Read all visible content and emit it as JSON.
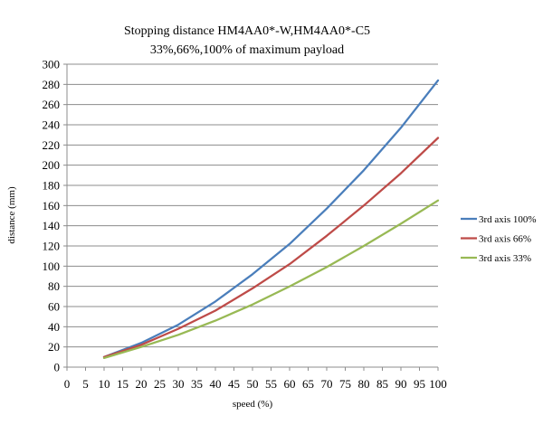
{
  "chart_data": {
    "type": "line",
    "title_lines": [
      "Stopping distance HM4AA0*-W,HM4AA0*-C5",
      "33%,66%,100% of maximum payload"
    ],
    "xlabel": "speed (%)",
    "ylabel": "distance (mm)",
    "x_ticks": [
      0,
      5,
      10,
      15,
      20,
      25,
      30,
      35,
      40,
      45,
      50,
      55,
      60,
      65,
      70,
      75,
      80,
      85,
      90,
      95,
      100
    ],
    "y_ticks": [
      0,
      20,
      40,
      60,
      80,
      100,
      120,
      140,
      160,
      180,
      200,
      220,
      240,
      260,
      280,
      300
    ],
    "xlim": [
      0,
      100
    ],
    "ylim": [
      0,
      300
    ],
    "grid": "horizontal",
    "legend_position": "right",
    "series": [
      {
        "name": "3rd axis 100%",
        "color": "#4a7ebb",
        "x": [
          10,
          20,
          30,
          40,
          50,
          60,
          70,
          80,
          90,
          100
        ],
        "y": [
          10,
          24,
          42,
          65,
          92,
          122,
          157,
          195,
          237,
          284
        ]
      },
      {
        "name": "3rd axis 66%",
        "color": "#be4b48",
        "x": [
          10,
          20,
          30,
          40,
          50,
          60,
          70,
          80,
          90,
          100
        ],
        "y": [
          10,
          22,
          38,
          56,
          78,
          102,
          130,
          160,
          192,
          227
        ]
      },
      {
        "name": "3rd axis 33%",
        "color": "#98b954",
        "x": [
          10,
          20,
          30,
          40,
          50,
          60,
          70,
          80,
          90,
          100
        ],
        "y": [
          9,
          20,
          32,
          46,
          62,
          80,
          99,
          120,
          142,
          165
        ]
      }
    ]
  }
}
